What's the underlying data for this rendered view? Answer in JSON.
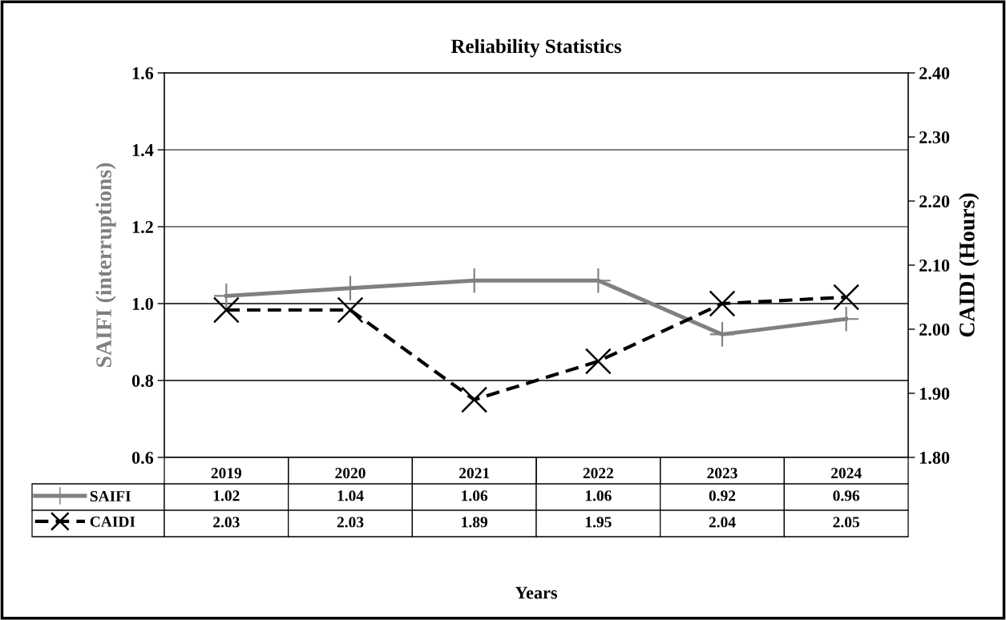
{
  "chart_data": {
    "type": "line",
    "title": "Reliability Statistics",
    "annotations": [
      "Years"
    ],
    "legend": "bottom left",
    "ylabel": "SAIFI (interruptions)",
    "y2label": "CAIDI (Hours)",
    "categories": [
      "2019",
      "2020",
      "2021",
      "2022",
      "2023",
      "2024"
    ],
    "series": [
      {
        "name": "SAIFI",
        "color": "#808080",
        "values": [
          1.02,
          1.04,
          1.06,
          1.06,
          0.92,
          0.96
        ],
        "marker": "cross",
        "line_style": "solid"
      },
      {
        "name": "CAIDI",
        "color": "#000000",
        "values": [
          2.03,
          2.03,
          1.89,
          1.95,
          2.04,
          2.05
        ],
        "marker": "x",
        "line_style": "dashed",
        "axis": "y2"
      }
    ],
    "ylim": [
      0.6,
      1.6
    ],
    "yticks": [
      0.6,
      0.8,
      {
        "value": 1.0,
        "label": "1.0"
      },
      1.2,
      1.4,
      1.6
    ],
    "y2lim": [
      1.8,
      2.4
    ],
    "y2ticks": [
      {
        "value": 1.8,
        "label": "1.80"
      },
      {
        "value": 1.9,
        "label": "1.90"
      },
      {
        "value": 2.0,
        "label": "2.00"
      },
      {
        "value": 2.1,
        "label": "2.10"
      },
      {
        "value": 2.2,
        "label": "2.20"
      },
      {
        "value": 2.3,
        "label": "2.30"
      },
      {
        "value": 2.4,
        "label": "2.40"
      }
    ],
    "grid": "y",
    "data_labels": true
  }
}
